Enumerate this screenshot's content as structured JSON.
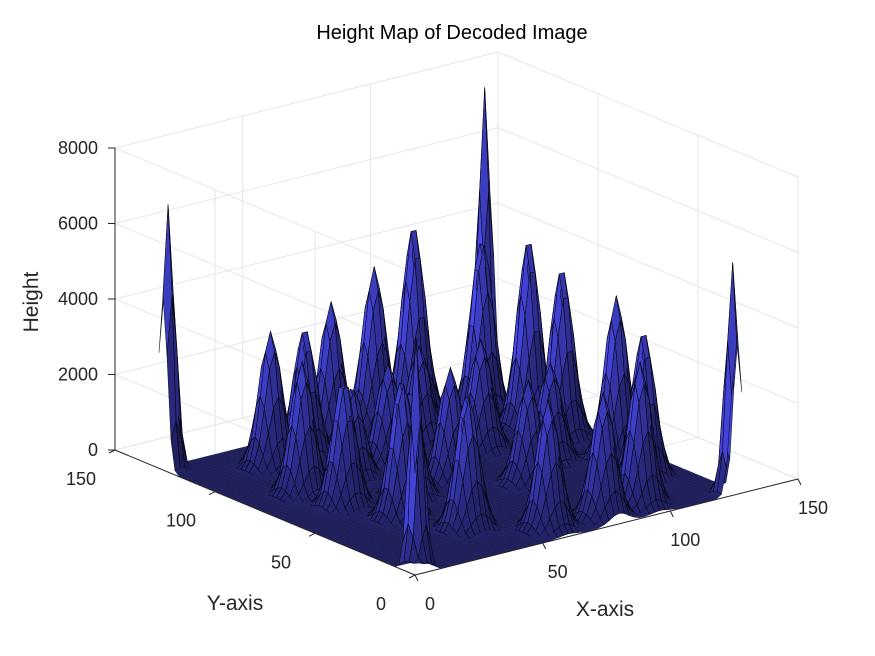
{
  "chart_data": {
    "type": "surface",
    "title": "Height Map of Decoded Image",
    "xlabel": "X-axis",
    "ylabel": "Y-axis",
    "zlabel": "Height",
    "xlim": [
      0,
      150
    ],
    "ylim": [
      0,
      150
    ],
    "zlim": [
      0,
      8000
    ],
    "x_ticks": [
      "0",
      "50",
      "100",
      "150"
    ],
    "y_ticks": [
      "0",
      "50",
      "100",
      "150"
    ],
    "z_ticks": [
      "0",
      "2000",
      "4000",
      "6000",
      "8000"
    ],
    "grid": true,
    "surface_extent": {
      "x": [
        0,
        128
      ],
      "y": [
        0,
        128
      ]
    },
    "colors": {
      "surface_low": "#1a1a4e",
      "surface_high": "#4a4af0",
      "edges": "#000000",
      "grid": "#e6e6e6",
      "axes": "#262626"
    },
    "peaks": [
      {
        "x": 2,
        "y": 2,
        "height": 6200
      },
      {
        "x": 2,
        "y": 126,
        "height": 7000
      },
      {
        "x": 126,
        "y": 2,
        "height": 6100
      },
      {
        "x": 126,
        "y": 126,
        "height": 8000
      },
      {
        "x": 28,
        "y": 108,
        "height": 3600
      },
      {
        "x": 43,
        "y": 110,
        "height": 3400
      },
      {
        "x": 58,
        "y": 116,
        "height": 3700
      },
      {
        "x": 78,
        "y": 120,
        "height": 4200
      },
      {
        "x": 95,
        "y": 122,
        "height": 5000
      },
      {
        "x": 110,
        "y": 107,
        "height": 4700
      },
      {
        "x": 115,
        "y": 90,
        "height": 5000
      },
      {
        "x": 117,
        "y": 76,
        "height": 4500
      },
      {
        "x": 118,
        "y": 50,
        "height": 4300
      },
      {
        "x": 113,
        "y": 30,
        "height": 3900
      },
      {
        "x": 20,
        "y": 82,
        "height": 3500
      },
      {
        "x": 23,
        "y": 65,
        "height": 3400
      },
      {
        "x": 30,
        "y": 45,
        "height": 3700
      },
      {
        "x": 40,
        "y": 25,
        "height": 3600
      },
      {
        "x": 60,
        "y": 10,
        "height": 3400
      },
      {
        "x": 80,
        "y": 8,
        "height": 3300
      },
      {
        "x": 96,
        "y": 10,
        "height": 3800
      },
      {
        "x": 45,
        "y": 60,
        "height": 2800
      },
      {
        "x": 64,
        "y": 64,
        "height": 3000
      },
      {
        "x": 82,
        "y": 48,
        "height": 2700
      },
      {
        "x": 60,
        "y": 90,
        "height": 2600
      },
      {
        "x": 90,
        "y": 82,
        "height": 2900
      },
      {
        "x": 80,
        "y": 100,
        "height": 2500
      },
      {
        "x": 42,
        "y": 85,
        "height": 2400
      },
      {
        "x": 100,
        "y": 60,
        "height": 2600
      }
    ]
  }
}
